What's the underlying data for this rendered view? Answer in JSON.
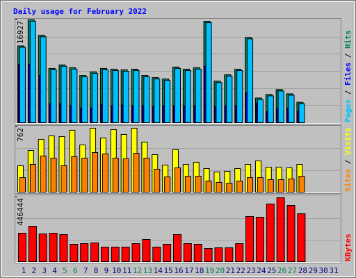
{
  "chart_data": [
    {
      "type": "bar",
      "title": "Daily usage for February 2022",
      "legend_separator": " / ",
      "ylim": [
        0,
        16927
      ],
      "yticks": [
        16927
      ],
      "series": [
        {
          "name": "Hits",
          "color": "#00805c",
          "values": [
            12637,
            16927,
            14376,
            8927,
            9507,
            9043,
            7768,
            8348,
            8927,
            8811,
            8695,
            8811,
            7768,
            7420,
            7188,
            9159,
            8811,
            9043,
            16695,
            6840,
            7884,
            8811,
            14028,
            4058,
            4637,
            5449,
            4753,
            3362,
            null,
            null,
            null
          ]
        },
        {
          "name": "Files",
          "color": "#0000ff",
          "values": [
            9623,
            9623,
            7768,
            3130,
            3130,
            2782,
            2435,
            2435,
            3014,
            2782,
            2898,
            2782,
            2782,
            2667,
            2782,
            2782,
            2782,
            2782,
            9275,
            2667,
            2782,
            2782,
            4985,
            3246,
            1855,
            2435,
            2435,
            1855,
            null,
            null,
            null
          ]
        },
        {
          "name": "Pages",
          "color": "#00c0ff",
          "values": [
            12407,
            16697,
            14146,
            8697,
            9277,
            8813,
            7538,
            8118,
            8697,
            8581,
            8465,
            8581,
            7538,
            7190,
            6958,
            8929,
            8581,
            8813,
            16465,
            6610,
            7654,
            8581,
            13798,
            3828,
            4407,
            5219,
            4523,
            3132,
            null,
            null,
            null
          ]
        }
      ]
    },
    {
      "type": "bar",
      "legend_separator": " / ",
      "ylim": [
        0,
        762
      ],
      "yticks": [
        762
      ],
      "series": [
        {
          "name": "Visits",
          "color": "#ffff00",
          "values": [
            308,
            486,
            616,
            657,
            649,
            722,
            551,
            746,
            632,
            730,
            673,
            746,
            584,
            438,
            316,
            495,
            324,
            349,
            276,
            235,
            243,
            276,
            324,
            365,
            292,
            292,
            284,
            324,
            null,
            null,
            null
          ]
        },
        {
          "name": "Sites",
          "color": "#ff8000",
          "values": [
            170,
            324,
            422,
            397,
            308,
            414,
            397,
            462,
            446,
            397,
            389,
            454,
            397,
            268,
            178,
            284,
            186,
            186,
            130,
            114,
            105,
            130,
            170,
            170,
            146,
            146,
            154,
            186,
            null,
            null,
            null
          ]
        }
      ]
    },
    {
      "type": "bar",
      "ylim": [
        0,
        446444
      ],
      "yticks": [
        446444
      ],
      "categories": [
        "1",
        "2",
        "3",
        "4",
        "5",
        "6",
        "7",
        "8",
        "9",
        "10",
        "11",
        "12",
        "13",
        "14",
        "15",
        "16",
        "17",
        "18",
        "19",
        "20",
        "21",
        "22",
        "23",
        "24",
        "25",
        "26",
        "27",
        "28",
        "29",
        "30",
        "31"
      ],
      "label_colors": [
        "#000080",
        "#000080",
        "#000080",
        "#000080",
        "#00805c",
        "#00805c",
        "#000080",
        "#000080",
        "#000080",
        "#000080",
        "#000080",
        "#00805c",
        "#00805c",
        "#000080",
        "#000080",
        "#000080",
        "#000080",
        "#000080",
        "#00805c",
        "#00805c",
        "#000080",
        "#000080",
        "#000080",
        "#000080",
        "#000080",
        "#00805c",
        "#00805c",
        "#000080",
        "#000080",
        "#000080",
        "#000080"
      ],
      "series": [
        {
          "name": "KBytes",
          "color": "#ff0000",
          "values": [
            196818,
            244821,
            192017,
            196818,
            187216,
            120010,
            124810,
            129611,
            100809,
            100809,
            100809,
            124810,
            153612,
            100809,
            120010,
            187216,
            124810,
            120010,
            91208,
            96009,
            96009,
            124810,
            312025,
            307224,
            398431,
            441644,
            388830,
            331227,
            null,
            null,
            null
          ]
        }
      ]
    }
  ]
}
